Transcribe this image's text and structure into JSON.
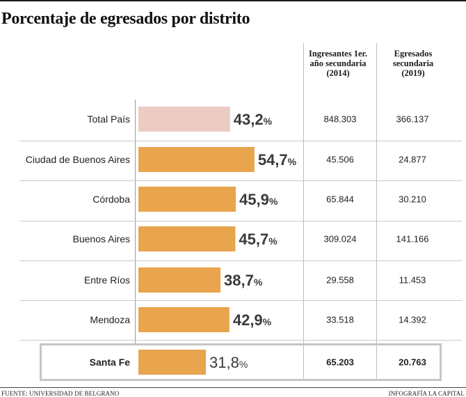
{
  "title": "Porcentaje de egresados por distrito",
  "columns": {
    "ingresantes": "Ingresantes 1er. año secundaria (2014)",
    "egresados": "Egresados secundaria (2019)"
  },
  "colors": {
    "bar": "#e9a44e",
    "bar_total": "#eccbc3",
    "value_text": "#3a3a3a"
  },
  "chart_data": {
    "type": "bar",
    "orientation": "horizontal",
    "title": "Porcentaje de egresados por distrito",
    "categories": [
      "Total País",
      "Ciudad de Buenos Aires",
      "Córdoba",
      "Buenos Aires",
      "Entre Ríos",
      "Mendoza",
      "Santa Fe"
    ],
    "values": [
      43.2,
      54.7,
      45.9,
      45.7,
      38.7,
      42.9,
      31.8
    ],
    "value_labels": [
      "43,2",
      "54,7",
      "45,9",
      "45,7",
      "38,7",
      "42,9",
      "31,8"
    ],
    "value_suffix": "%",
    "highlighted": "Santa Fe",
    "xlim": [
      0,
      100
    ],
    "grid": false,
    "legend": "none"
  },
  "rows": [
    {
      "label": "Total País",
      "ingresantes": "848.303",
      "egresados": "366.137"
    },
    {
      "label": "Ciudad de Buenos Aires",
      "ingresantes": "45.506",
      "egresados": "24.877"
    },
    {
      "label": "Córdoba",
      "ingresantes": "65.844",
      "egresados": "30.210"
    },
    {
      "label": "Buenos Aires",
      "ingresantes": "309.024",
      "egresados": "141.166"
    },
    {
      "label": "Entre Ríos",
      "ingresantes": "29.558",
      "egresados": "11.453"
    },
    {
      "label": "Mendoza",
      "ingresantes": "33.518",
      "egresados": "14.392"
    },
    {
      "label": "Santa Fe",
      "ingresantes": "65.203",
      "egresados": "20.763"
    }
  ],
  "footer": {
    "source": "FUENTE: UNIVERSIDAD DE BELGRANO",
    "credit": "INFOGRAFÍA LA CAPITAL"
  }
}
